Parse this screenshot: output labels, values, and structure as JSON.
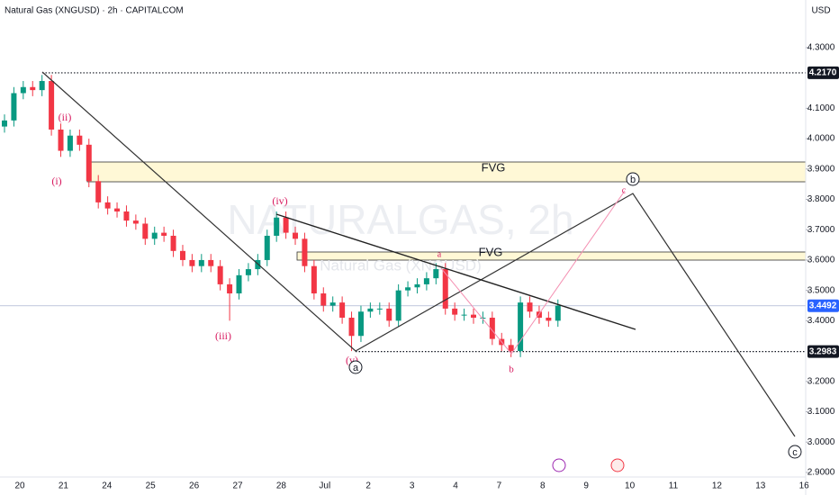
{
  "header": {
    "title": "Natural Gas (XNGUSD) · 2h · CAPITALCOM",
    "currency": "USD"
  },
  "watermark": {
    "symbol": "NATURALGAS, 2h",
    "name": "Natural Gas (XNGUSD)"
  },
  "annotations": {
    "wave_1": "(i)",
    "wave_2": "(ii)",
    "wave_3": "(iii)",
    "wave_4": "(iv)",
    "wave_5": "(v)",
    "big_a": "a",
    "big_b": "b",
    "big_c": "c",
    "small_a": "a",
    "small_b": "b",
    "small_c": "c",
    "fvg_upper": "FVG",
    "fvg_lower": "FVG"
  },
  "chart_data": {
    "type": "candlestick",
    "up_color": "#089981",
    "down_color": "#f23645",
    "ylim": [
      2.885,
      4.457
    ],
    "yticks": [
      {
        "value": 4.3,
        "label": "4.3000"
      },
      {
        "value": 4.1,
        "label": "4.1000"
      },
      {
        "value": 4.0,
        "label": "4.0000"
      },
      {
        "value": 3.9,
        "label": "3.9000"
      },
      {
        "value": 3.8,
        "label": "3.8000"
      },
      {
        "value": 3.7,
        "label": "3.7000"
      },
      {
        "value": 3.6,
        "label": "3.6000"
      },
      {
        "value": 3.5,
        "label": "3.5000"
      },
      {
        "value": 3.4,
        "label": "3.4000"
      },
      {
        "value": 3.2,
        "label": "3.2000"
      },
      {
        "value": 3.1,
        "label": "3.1000"
      },
      {
        "value": 3.0,
        "label": "3.0000"
      },
      {
        "value": 2.9,
        "label": "2.9000"
      }
    ],
    "price_lines": [
      {
        "value": 4.217,
        "label": "4.2170",
        "color": "#131722"
      },
      {
        "value": 3.4492,
        "label": "3.4492",
        "color": "#2962ff"
      },
      {
        "value": 3.2983,
        "label": "3.2983",
        "color": "#131722"
      }
    ],
    "categories": [
      "20",
      "21",
      "24",
      "25",
      "26",
      "27",
      "28",
      "Jul",
      "2",
      "3",
      "4",
      "7",
      "8",
      "9",
      "10",
      "11",
      "12",
      "13",
      "16"
    ],
    "open": [
      4.04,
      4.06,
      4.15,
      4.17,
      4.16,
      4.19,
      4.03,
      3.96,
      4.01,
      3.98,
      3.86,
      3.79,
      3.77,
      3.76,
      3.73,
      3.72,
      3.67,
      3.69,
      3.68,
      3.63,
      3.6,
      3.58,
      3.6,
      3.58,
      3.52,
      3.49,
      3.55,
      3.57,
      3.6,
      3.68,
      3.74,
      3.69,
      3.67,
      3.58,
      3.49,
      3.45,
      3.46,
      3.41,
      3.35,
      3.43,
      3.44,
      3.44,
      3.4,
      3.5,
      3.51,
      3.52,
      3.54,
      3.57,
      3.44,
      3.42,
      3.42,
      3.41,
      3.41,
      3.34,
      3.32,
      3.3,
      3.46,
      3.43,
      3.41,
      3.4
    ],
    "high": [
      4.08,
      4.17,
      4.19,
      4.19,
      4.21,
      4.21,
      4.05,
      4.03,
      4.03,
      4.0,
      3.88,
      3.81,
      3.79,
      3.78,
      3.75,
      3.74,
      3.71,
      3.71,
      3.7,
      3.65,
      3.62,
      3.62,
      3.62,
      3.6,
      3.54,
      3.57,
      3.59,
      3.62,
      3.7,
      3.76,
      3.76,
      3.71,
      3.69,
      3.6,
      3.51,
      3.48,
      3.48,
      3.43,
      3.45,
      3.46,
      3.46,
      3.46,
      3.52,
      3.53,
      3.54,
      3.56,
      3.59,
      3.59,
      3.46,
      3.44,
      3.44,
      3.43,
      3.43,
      3.36,
      3.34,
      3.48,
      3.48,
      3.45,
      3.43,
      3.47
    ],
    "low": [
      4.02,
      4.04,
      4.13,
      4.14,
      4.14,
      4.01,
      3.94,
      3.94,
      3.96,
      3.84,
      3.77,
      3.75,
      3.74,
      3.71,
      3.7,
      3.65,
      3.65,
      3.66,
      3.61,
      3.58,
      3.56,
      3.56,
      3.56,
      3.5,
      3.4,
      3.47,
      3.53,
      3.55,
      3.58,
      3.66,
      3.67,
      3.65,
      3.56,
      3.47,
      3.43,
      3.43,
      3.39,
      3.3,
      3.33,
      3.41,
      3.42,
      3.38,
      3.38,
      3.48,
      3.49,
      3.5,
      3.52,
      3.42,
      3.4,
      3.4,
      3.39,
      3.39,
      3.32,
      3.3,
      3.28,
      3.28,
      3.41,
      3.39,
      3.38,
      3.38
    ],
    "close": [
      4.06,
      4.15,
      4.17,
      4.16,
      4.19,
      4.03,
      3.96,
      4.01,
      3.98,
      3.86,
      3.79,
      3.77,
      3.76,
      3.73,
      3.72,
      3.67,
      3.69,
      3.68,
      3.63,
      3.6,
      3.58,
      3.6,
      3.58,
      3.52,
      3.49,
      3.55,
      3.57,
      3.6,
      3.68,
      3.74,
      3.69,
      3.67,
      3.58,
      3.49,
      3.45,
      3.46,
      3.41,
      3.35,
      3.43,
      3.44,
      3.44,
      3.4,
      3.5,
      3.51,
      3.52,
      3.54,
      3.57,
      3.44,
      3.42,
      3.42,
      3.41,
      3.41,
      3.34,
      3.32,
      3.3,
      3.46,
      3.43,
      3.41,
      3.4,
      3.45
    ]
  }
}
